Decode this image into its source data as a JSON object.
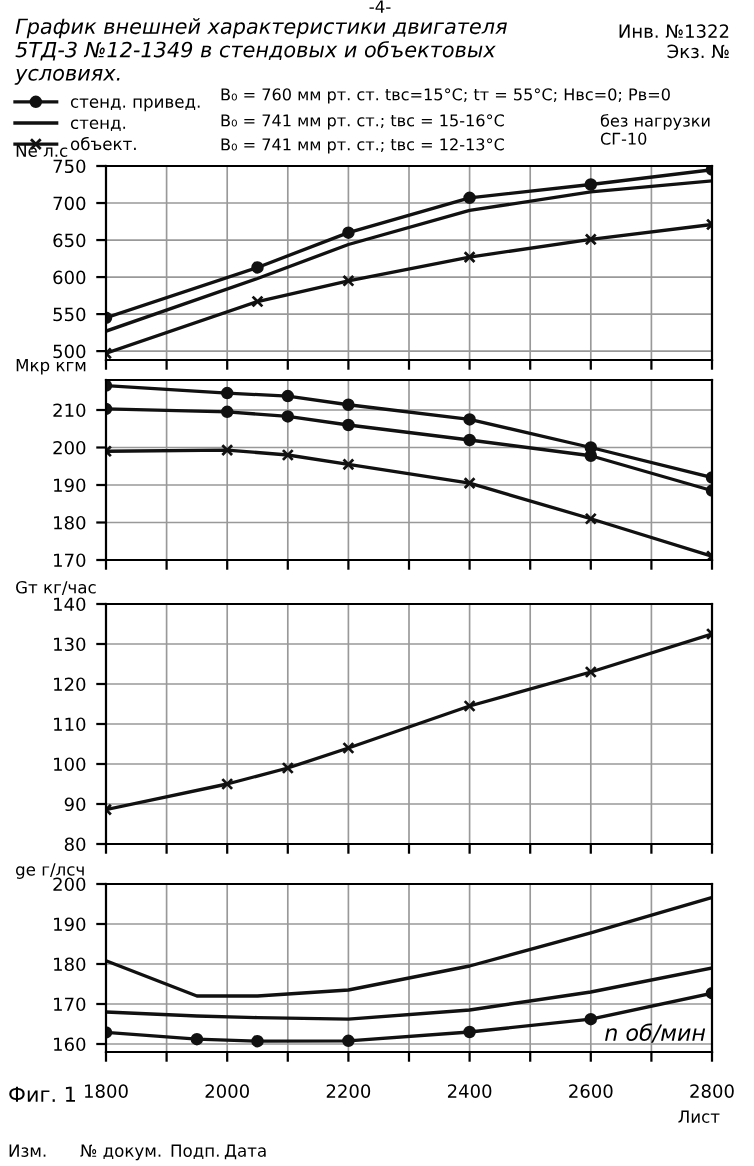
{
  "chart_data": [
    {
      "type": "line",
      "title": "График внешней характеристики двигателя\n5ТД-3 №12-1349 в стендовых и объектовых\nусловиях.",
      "ylabel": "Ne л.с",
      "x": [
        1800,
        2050,
        2200,
        2400,
        2600,
        2800
      ],
      "series": [
        {
          "name": "стенд. привед.",
          "color": "#111111",
          "marker": "circle",
          "values": [
            545,
            613,
            660,
            707,
            725,
            745
          ]
        },
        {
          "name": "стенд.",
          "color": "#111111",
          "marker": "none",
          "values": [
            527,
            598,
            644,
            690,
            715,
            730
          ]
        },
        {
          "name": "объект.",
          "color": "#111111",
          "marker": "cross",
          "values": [
            497,
            567,
            595,
            627,
            651,
            671
          ]
        }
      ],
      "xlim": [
        1800,
        2800
      ],
      "xticks": [
        1800,
        {
          "value": 1900,
          "label": null
        },
        2000,
        {
          "value": 2100,
          "label": null
        },
        2200,
        {
          "value": 2300,
          "label": null
        },
        2400,
        {
          "value": 2500,
          "label": null
        },
        2600,
        {
          "value": 2700,
          "label": null
        },
        2800
      ],
      "ylim": [
        488,
        750
      ],
      "yticks": [
        500,
        550,
        600,
        650,
        700,
        750
      ],
      "grid": true,
      "legend": "top left",
      "tick_labels": "y",
      "annotations": [
        "-4-",
        "Инв. №1322\nЭкз. №",
        "B₀ = 760 мм рт. ст. tвс=15°C; tт = 55°C; Hвс=0; Pв=0",
        "B₀ = 741 мм рт. ст.; tвс = 15-16°C",
        "B₀ = 741 мм рт. ст.; tвс = 12-13°C",
        "без нагрузки\nСГ-10"
      ]
    },
    {
      "type": "line",
      "ylabel": "Mкр кгм",
      "x": [
        1800,
        2000,
        2100,
        2200,
        2400,
        2600,
        2800
      ],
      "series": [
        {
          "color": "#111111",
          "marker": "circle",
          "values": [
            216.5,
            214.5,
            213.7,
            211.4,
            207.5,
            200,
            192
          ]
        },
        {
          "color": "#111111",
          "marker": "circle",
          "values": [
            210.3,
            209.5,
            208.3,
            206,
            202,
            197.8,
            188.5
          ]
        },
        {
          "color": "#111111",
          "marker": "cross",
          "values": [
            199,
            199.3,
            198,
            195.5,
            190.5,
            181,
            171
          ]
        }
      ],
      "xlim": [
        1800,
        2800
      ],
      "xticks": [
        1800,
        {
          "value": 1900,
          "label": null
        },
        2000,
        {
          "value": 2100,
          "label": null
        },
        2200,
        {
          "value": 2300,
          "label": null
        },
        2400,
        {
          "value": 2500,
          "label": null
        },
        2600,
        {
          "value": 2700,
          "label": null
        },
        2800
      ],
      "ylim": [
        170,
        218
      ],
      "yticks": [
        170,
        180,
        190,
        200,
        210
      ],
      "grid": true,
      "tick_labels": "y"
    },
    {
      "type": "line",
      "ylabel": "Gт кг/час",
      "x": [
        1800,
        2000,
        2100,
        2200,
        2400,
        2600,
        2800
      ],
      "series": [
        {
          "color": "#111111",
          "marker": "cross",
          "values": [
            88.6,
            95,
            99,
            104,
            114.5,
            123,
            132.5
          ]
        }
      ],
      "xlim": [
        1800,
        2800
      ],
      "xticks": [
        1800,
        {
          "value": 1900,
          "label": null
        },
        2000,
        {
          "value": 2100,
          "label": null
        },
        2200,
        {
          "value": 2300,
          "label": null
        },
        2400,
        {
          "value": 2500,
          "label": null
        },
        2600,
        {
          "value": 2700,
          "label": null
        },
        2800
      ],
      "ylim": [
        80,
        140
      ],
      "yticks": [
        80,
        90,
        100,
        110,
        120,
        130,
        140
      ],
      "grid": true,
      "tick_labels": "y"
    },
    {
      "type": "line",
      "ylabel": "ge г/лсч",
      "xlabel": "n об/мин",
      "x": [
        1800,
        1950,
        2050,
        2200,
        2400,
        2600,
        2800
      ],
      "series": [
        {
          "color": "#111111",
          "marker": "none",
          "values": [
            180.8,
            172,
            172,
            173.5,
            179.5,
            187.8,
            196.6
          ]
        },
        {
          "color": "#111111",
          "marker": "none",
          "values": [
            168,
            167,
            166.6,
            166.2,
            168.5,
            173,
            179
          ]
        },
        {
          "color": "#111111",
          "marker": "circle",
          "values": [
            162.9,
            161.2,
            160.7,
            160.8,
            163,
            166.2,
            172.7
          ]
        }
      ],
      "xlim": [
        1800,
        2800
      ],
      "xticks": [
        1800,
        {
          "value": 1900,
          "label": null
        },
        2000,
        {
          "value": 2100,
          "label": null
        },
        2200,
        {
          "value": 2300,
          "label": null
        },
        2400,
        {
          "value": 2500,
          "label": null
        },
        2600,
        {
          "value": 2700,
          "label": null
        },
        2800
      ],
      "ylim": [
        158,
        200
      ],
      "yticks": [
        160,
        170,
        180,
        190,
        200
      ],
      "grid": true,
      "annotations": [
        "Фиг. 1",
        "Изм.",
        "№ докум.",
        "Подп.",
        "Дата",
        "Лист"
      ]
    }
  ]
}
